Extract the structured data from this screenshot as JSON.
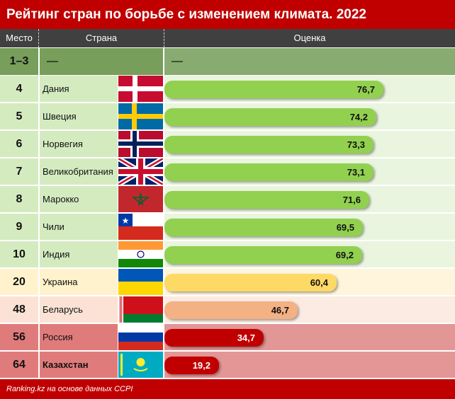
{
  "title": "Рейтинг стран по борьбе с изменением климата. 2022",
  "header": {
    "rank": "Место",
    "country": "Страна",
    "score": "Оценка"
  },
  "top_row": {
    "rank": "1–3",
    "country": "—",
    "score": "—"
  },
  "rows": [
    {
      "rank": "4",
      "country": "Дания",
      "score": 76.7,
      "label": "76,7",
      "flag": "denmark-flag-icon",
      "tier": "green"
    },
    {
      "rank": "5",
      "country": "Швеция",
      "score": 74.2,
      "label": "74,2",
      "flag": "sweden-flag-icon",
      "tier": "green"
    },
    {
      "rank": "6",
      "country": "Норвегия",
      "score": 73.3,
      "label": "73,3",
      "flag": "norway-flag-icon",
      "tier": "green"
    },
    {
      "rank": "7",
      "country": "Великобритания",
      "score": 73.1,
      "label": "73,1",
      "flag": "uk-flag-icon",
      "tier": "green"
    },
    {
      "rank": "8",
      "country": "Марокко",
      "score": 71.6,
      "label": "71,6",
      "flag": "morocco-flag-icon",
      "tier": "green"
    },
    {
      "rank": "9",
      "country": "Чили",
      "score": 69.5,
      "label": "69,5",
      "flag": "chile-flag-icon",
      "tier": "green"
    },
    {
      "rank": "10",
      "country": "Индия",
      "score": 69.2,
      "label": "69,2",
      "flag": "india-flag-icon",
      "tier": "green"
    },
    {
      "rank": "20",
      "country": "Украина",
      "score": 60.4,
      "label": "60,4",
      "flag": "ukraine-flag-icon",
      "tier": "yellow"
    },
    {
      "rank": "48",
      "country": "Беларусь",
      "score": 46.7,
      "label": "46,7",
      "flag": "belarus-flag-icon",
      "tier": "peach"
    },
    {
      "rank": "56",
      "country": "Россия",
      "score": 34.7,
      "label": "34,7",
      "flag": "russia-flag-icon",
      "tier": "red"
    },
    {
      "rank": "64",
      "country": "Казахстан",
      "score": 19.2,
      "label": "19,2",
      "flag": "kazakhstan-flag-icon",
      "tier": "red",
      "bold": true
    }
  ],
  "tiers": {
    "green": {
      "left": "#d4ebc0",
      "right": "#eaf5df",
      "bar": "#92d050",
      "text": "#111111"
    },
    "yellow": {
      "left": "#fff2cc",
      "right": "#fff5dd",
      "bar": "#ffd966",
      "text": "#111111"
    },
    "peach": {
      "left": "#fbe2d5",
      "right": "#fcebe2",
      "bar": "#f4b183",
      "text": "#111111"
    },
    "red": {
      "left": "#e07b7b",
      "right": "#e39696",
      "bar": "#c00000",
      "text": "#ffffff"
    }
  },
  "footer": "Ranking.kz на основе данных CCPI"
}
